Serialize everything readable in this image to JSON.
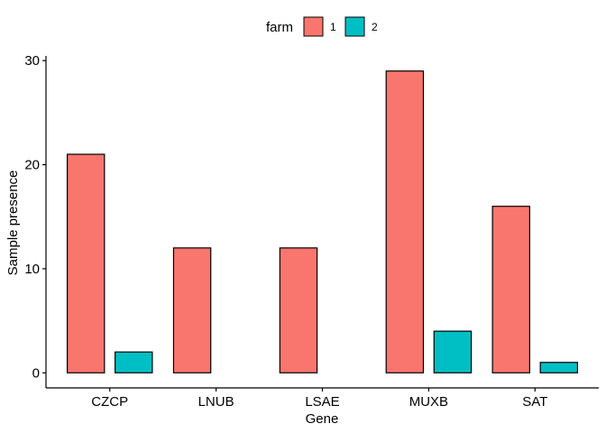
{
  "chart_data": {
    "type": "bar",
    "title": "",
    "xlabel": "Gene",
    "ylabel": "Sample presence",
    "categories": [
      "CZCP",
      "LNUB",
      "LSAE",
      "MUXB",
      "SAT"
    ],
    "series": [
      {
        "name": "1",
        "color": "#F8766D",
        "values": [
          21,
          12,
          12,
          29,
          16
        ]
      },
      {
        "name": "2",
        "color": "#00BFC4",
        "values": [
          2,
          0,
          0,
          4,
          1
        ]
      }
    ],
    "ylim": [
      -1.45,
      30.45
    ],
    "yticks": [
      0,
      10,
      20,
      30
    ],
    "grid": false,
    "legend": {
      "title": "farm",
      "position": "top"
    }
  }
}
